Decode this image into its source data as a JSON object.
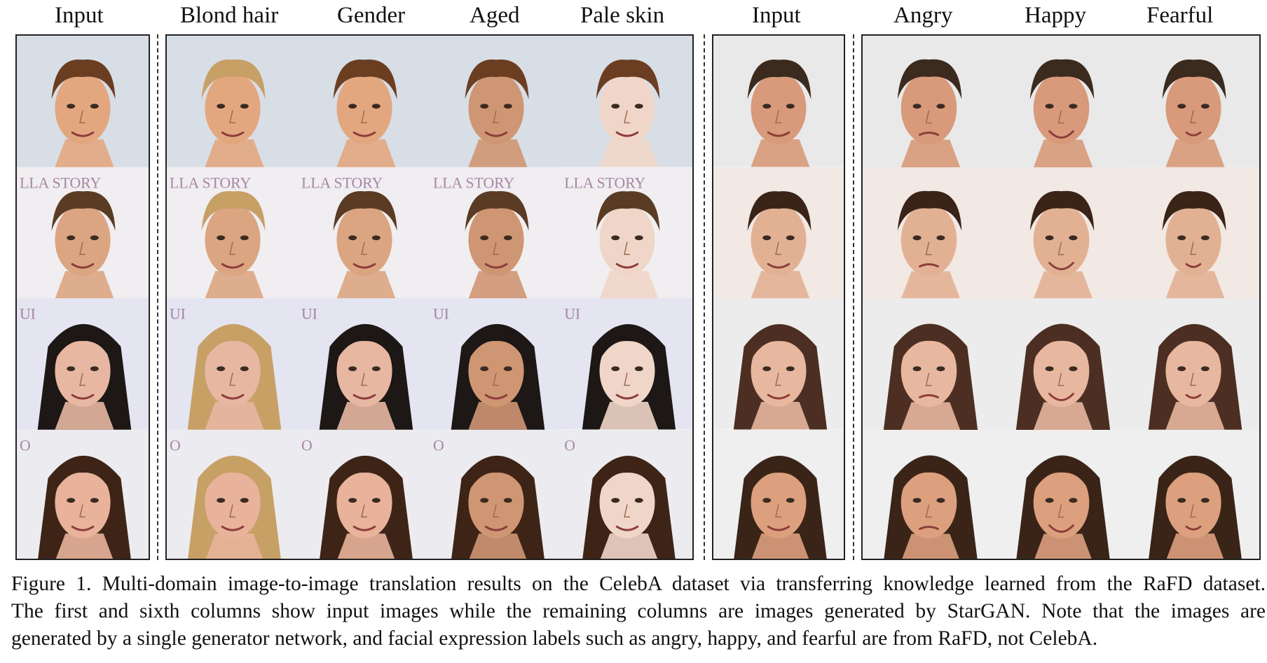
{
  "figure": {
    "column_headers": [
      {
        "label": "Input",
        "group": "celeba"
      },
      {
        "label": "Blond hair",
        "group": "celeba"
      },
      {
        "label": "Gender",
        "group": "celeba"
      },
      {
        "label": "Aged",
        "group": "celeba"
      },
      {
        "label": "Pale skin",
        "group": "celeba"
      },
      {
        "label": "Input",
        "group": "rafd"
      },
      {
        "label": "Angry",
        "group": "rafd"
      },
      {
        "label": "Happy",
        "group": "rafd"
      },
      {
        "label": "Fearful",
        "group": "rafd"
      }
    ],
    "rows": [
      {
        "subject": "man-wavy-hair",
        "background": "#d8dee6",
        "bg_text": "",
        "skin": "#e3a780",
        "hair": "#6b3e22",
        "rafd_subject": "man-quiff",
        "rafd_background": "#e9e9e9",
        "rafd_skin": "#d89a7a",
        "rafd_hair": "#3b2a1e"
      },
      {
        "subject": "man-short-hair",
        "background": "#f0eef0",
        "bg_text": "LLA STORY",
        "skin": "#dba582",
        "hair": "#5a3b24",
        "rafd_subject": "man-swept-hair",
        "rafd_background": "#f2e8e4",
        "rafd_skin": "#e2b194",
        "rafd_hair": "#3a2417"
      },
      {
        "subject": "woman-dark-hair",
        "background": "#e4e5f1",
        "bg_text": "UI",
        "skin": "#e7b7a2",
        "hair": "#1d1716",
        "rafd_subject": "woman-parted-hair",
        "rafd_background": "#ececec",
        "rafd_skin": "#e8b79f",
        "rafd_hair": "#4c2f22"
      },
      {
        "subject": "woman-side-part",
        "background": "#ececf0",
        "bg_text": "O",
        "skin": "#e8b39a",
        "hair": "#3e2417",
        "rafd_subject": "woman-curly-hair",
        "rafd_background": "#efefef",
        "rafd_skin": "#dca07e",
        "rafd_hair": "#3a2418"
      }
    ],
    "attribute_hair": {
      "Blond hair": "#c7a066",
      "Gender": null,
      "Aged": null,
      "Pale skin": null
    },
    "attribute_skin": {
      "Pale skin": "#f0d6c8",
      "Aged": "#cf9673"
    },
    "caption_lines": [
      "Figure 1. Multi-domain image-to-image translation results on the CelebA dataset via transferring knowledge learned from the RaFD dataset.",
      "The first and sixth columns show input images while the remaining columns are images generated by StarGAN. Note that the images are",
      "generated by a single generator network, and facial expression labels such as angry, happy, and fearful are from RaFD, not CelebA."
    ]
  }
}
